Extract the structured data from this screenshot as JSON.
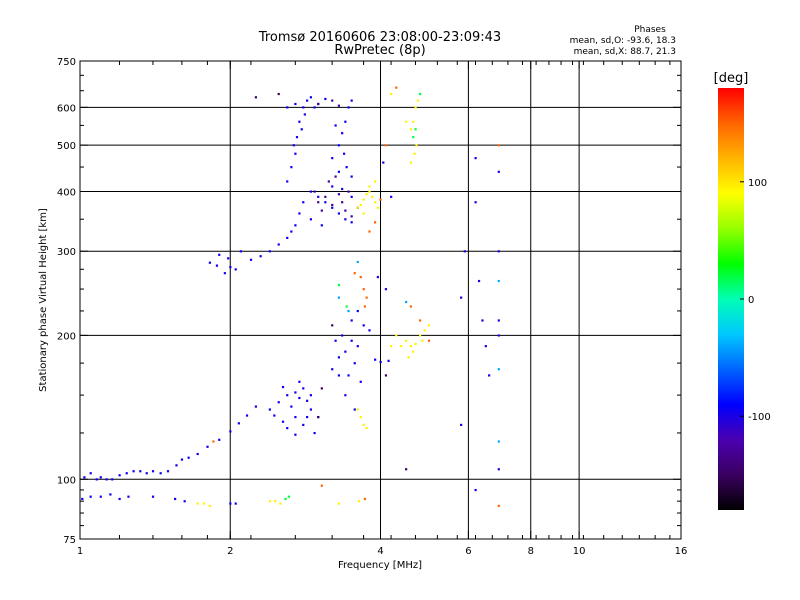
{
  "chart_data": {
    "type": "scatter",
    "title": "Tromsø 20160606 23:08:00-23:09:43",
    "subtitle": "RwPretec (8p)",
    "xlabel": "Frequency [MHz]",
    "ylabel": "Stationary phase Virtual Height [km]",
    "xscale": "log",
    "yscale": "log",
    "xlim": [
      1,
      16
    ],
    "ylim": [
      75,
      750
    ],
    "grid": true,
    "x_ticks": [
      1,
      2,
      4,
      6,
      8,
      10,
      16
    ],
    "x_tick_labels": [
      "1",
      "2",
      "4",
      "6",
      "8",
      "10",
      "16"
    ],
    "x_grid": [
      2,
      4,
      6,
      8,
      10
    ],
    "y_ticks": [
      75,
      100,
      200,
      300,
      400,
      500,
      600,
      750
    ],
    "y_tick_labels": [
      "75",
      "100",
      "200",
      "300",
      "400",
      "500",
      "600",
      "750"
    ],
    "y_grid": [
      100,
      200,
      300,
      400,
      500,
      600
    ],
    "stats": {
      "heading": "Phases",
      "line_o": "mean, sd,O: -93.6, 18.3",
      "line_x": "mean, sd,X: 88.7, 21.3"
    },
    "colorbar": {
      "label": "[deg]",
      "range": [
        -180,
        180
      ],
      "tick_values": [
        100,
        0,
        -100
      ],
      "tick_labels": [
        "100",
        "0",
        "-100"
      ],
      "colors": [
        "#000000",
        "#3a0060",
        "#4b00b0",
        "#0000ff",
        "#0064ff",
        "#00c8ff",
        "#00ffb4",
        "#00ff00",
        "#96ff00",
        "#ffff00",
        "#ffb400",
        "#ff6400",
        "#ff0000"
      ]
    },
    "series": [
      {
        "phase": -95,
        "points": [
          [
            1.02,
            101
          ],
          [
            1.05,
            103
          ],
          [
            1.08,
            100
          ],
          [
            1.1,
            101
          ],
          [
            1.13,
            100
          ],
          [
            1.16,
            100
          ],
          [
            1.2,
            102
          ],
          [
            1.24,
            103
          ],
          [
            1.28,
            104
          ],
          [
            1.32,
            104
          ],
          [
            1.36,
            103
          ],
          [
            1.4,
            104
          ],
          [
            1.45,
            103
          ],
          [
            1.5,
            104
          ],
          [
            1.56,
            107
          ],
          [
            1.6,
            110
          ],
          [
            1.65,
            111
          ],
          [
            1.72,
            113
          ],
          [
            1.8,
            117
          ],
          [
            1.9,
            121
          ],
          [
            2.0,
            126
          ],
          [
            2.08,
            131
          ],
          [
            2.16,
            136
          ],
          [
            2.25,
            142
          ],
          [
            1.01,
            91
          ],
          [
            1.05,
            92
          ],
          [
            1.1,
            92
          ],
          [
            1.15,
            93
          ],
          [
            1.2,
            91
          ],
          [
            1.25,
            92
          ],
          [
            1.4,
            92
          ],
          [
            1.55,
            91
          ],
          [
            1.62,
            90
          ],
          [
            2.0,
            89
          ],
          [
            2.05,
            89
          ],
          [
            2.4,
            140
          ],
          [
            2.5,
            145
          ],
          [
            2.6,
            150
          ],
          [
            2.7,
            152
          ],
          [
            2.75,
            148
          ],
          [
            2.8,
            155
          ],
          [
            2.85,
            146
          ],
          [
            2.9,
            140
          ],
          [
            2.7,
            135
          ],
          [
            2.55,
            132
          ],
          [
            2.6,
            128
          ],
          [
            2.8,
            130
          ],
          [
            2.95,
            125
          ],
          [
            2.45,
            136
          ],
          [
            2.65,
            142
          ],
          [
            2.9,
            150
          ],
          [
            2.75,
            160
          ],
          [
            2.55,
            156
          ],
          [
            2.85,
            135
          ],
          [
            2.7,
            124
          ],
          [
            3.0,
            135
          ],
          [
            3.2,
            170
          ],
          [
            3.3,
            180
          ],
          [
            3.35,
            200
          ],
          [
            3.4,
            185
          ],
          [
            3.5,
            195
          ],
          [
            3.55,
            175
          ],
          [
            3.6,
            190
          ],
          [
            3.65,
            160
          ],
          [
            3.45,
            165
          ],
          [
            3.3,
            165
          ],
          [
            3.7,
            210
          ],
          [
            3.25,
            195
          ],
          [
            3.5,
            215
          ],
          [
            3.6,
            225
          ],
          [
            3.8,
            205
          ],
          [
            3.9,
            178
          ],
          [
            4.0,
            176
          ],
          [
            4.15,
            177
          ],
          [
            3.4,
            150
          ],
          [
            3.55,
            140
          ],
          [
            1.82,
            284
          ],
          [
            1.88,
            280
          ],
          [
            1.95,
            270
          ],
          [
            2.0,
            278
          ],
          [
            2.05,
            275
          ],
          [
            1.9,
            295
          ],
          [
            1.98,
            290
          ],
          [
            2.1,
            300
          ],
          [
            2.2,
            288
          ],
          [
            2.3,
            293
          ],
          [
            2.4,
            300
          ],
          [
            2.5,
            310
          ],
          [
            2.6,
            320
          ],
          [
            2.7,
            340
          ],
          [
            2.75,
            360
          ],
          [
            2.8,
            380
          ],
          [
            2.9,
            400
          ],
          [
            3.0,
            390
          ],
          [
            3.1,
            380
          ],
          [
            3.2,
            370
          ],
          [
            3.3,
            360
          ],
          [
            3.4,
            350
          ],
          [
            3.5,
            345
          ],
          [
            2.65,
            330
          ],
          [
            2.9,
            350
          ],
          [
            3.05,
            340
          ],
          [
            3.2,
            410
          ],
          [
            3.35,
            405
          ],
          [
            3.5,
            390
          ],
          [
            3.6,
            370
          ],
          [
            2.6,
            420
          ],
          [
            2.65,
            450
          ],
          [
            2.7,
            480
          ],
          [
            2.72,
            520
          ],
          [
            2.75,
            560
          ],
          [
            2.8,
            600
          ],
          [
            2.85,
            620
          ],
          [
            2.9,
            630
          ],
          [
            2.82,
            580
          ],
          [
            2.6,
            600
          ],
          [
            2.7,
            610
          ],
          [
            2.95,
            600
          ],
          [
            2.78,
            540
          ],
          [
            2.68,
            500
          ],
          [
            3.2,
            470
          ],
          [
            3.3,
            500
          ],
          [
            3.35,
            530
          ],
          [
            3.4,
            560
          ],
          [
            3.45,
            600
          ],
          [
            3.5,
            620
          ],
          [
            3.25,
            550
          ],
          [
            3.38,
            480
          ],
          [
            3.42,
            450
          ],
          [
            3.3,
            440
          ],
          [
            3.5,
            430
          ],
          [
            3.1,
            625
          ],
          [
            3.0,
            610
          ]
        ]
      },
      {
        "phase": -130,
        "points": [
          [
            3.0,
            380
          ],
          [
            3.1,
            390
          ],
          [
            3.2,
            375
          ],
          [
            3.3,
            395
          ],
          [
            3.4,
            365
          ],
          [
            3.5,
            355
          ],
          [
            3.15,
            420
          ],
          [
            3.25,
            430
          ],
          [
            3.05,
            365
          ],
          [
            3.35,
            380
          ],
          [
            3.45,
            400
          ],
          [
            2.95,
            400
          ],
          [
            3.0,
            610
          ],
          [
            3.2,
            620
          ],
          [
            3.3,
            605
          ]
        ]
      },
      {
        "phase": 95,
        "points": [
          [
            3.6,
            370
          ],
          [
            3.7,
            385
          ],
          [
            3.75,
            395
          ],
          [
            3.8,
            400
          ],
          [
            3.85,
            390
          ],
          [
            3.9,
            380
          ],
          [
            3.95,
            370
          ],
          [
            3.7,
            360
          ],
          [
            3.8,
            410
          ],
          [
            3.9,
            420
          ],
          [
            3.65,
            375
          ],
          [
            4.6,
            540
          ],
          [
            4.65,
            560
          ],
          [
            4.7,
            600
          ],
          [
            4.75,
            620
          ],
          [
            4.72,
            500
          ],
          [
            4.68,
            480
          ],
          [
            4.6,
            460
          ],
          [
            4.2,
            640
          ],
          [
            4.5,
            560
          ],
          [
            4.4,
            190
          ],
          [
            4.5,
            195
          ],
          [
            4.6,
            190
          ],
          [
            4.7,
            192
          ],
          [
            4.8,
            200
          ],
          [
            4.9,
            205
          ],
          [
            5.0,
            210
          ],
          [
            4.3,
            200
          ],
          [
            4.65,
            185
          ],
          [
            4.55,
            180
          ],
          [
            4.2,
            190
          ],
          [
            4.85,
            195
          ],
          [
            3.65,
            135
          ],
          [
            3.7,
            130
          ],
          [
            3.75,
            128
          ],
          [
            3.6,
            140
          ],
          [
            1.72,
            89
          ],
          [
            1.77,
            89
          ],
          [
            1.82,
            88
          ],
          [
            2.4,
            90
          ],
          [
            2.46,
            90
          ],
          [
            2.52,
            89
          ],
          [
            3.3,
            89
          ],
          [
            3.62,
            90
          ]
        ]
      },
      {
        "phase": 150,
        "points": [
          [
            3.8,
            330
          ],
          [
            3.9,
            345
          ],
          [
            4.0,
            385
          ],
          [
            3.55,
            270
          ],
          [
            3.65,
            265
          ],
          [
            3.7,
            250
          ],
          [
            3.75,
            240
          ],
          [
            3.72,
            230
          ],
          [
            4.3,
            660
          ],
          [
            4.1,
            500
          ],
          [
            4.6,
            230
          ],
          [
            4.8,
            215
          ],
          [
            5.0,
            195
          ],
          [
            1.85,
            120
          ],
          [
            3.05,
            97
          ],
          [
            3.72,
            91
          ],
          [
            6.9,
            88
          ],
          [
            6.9,
            500
          ]
        ]
      },
      {
        "phase": 20,
        "points": [
          [
            4.65,
            520
          ],
          [
            4.7,
            540
          ],
          [
            4.8,
            640
          ],
          [
            2.58,
            91
          ],
          [
            2.62,
            92
          ],
          [
            3.42,
            230
          ],
          [
            3.3,
            255
          ]
        ]
      },
      {
        "phase": -40,
        "points": [
          [
            3.3,
            240
          ],
          [
            3.45,
            225
          ],
          [
            3.6,
            285
          ],
          [
            6.9,
            260
          ],
          [
            6.9,
            170
          ],
          [
            6.9,
            120
          ],
          [
            4.5,
            235
          ]
        ]
      },
      {
        "phase": -100,
        "points": [
          [
            6.2,
            470
          ],
          [
            6.2,
            380
          ],
          [
            6.3,
            260
          ],
          [
            6.4,
            215
          ],
          [
            6.2,
            95
          ],
          [
            6.9,
            440
          ],
          [
            6.9,
            300
          ],
          [
            6.9,
            215
          ],
          [
            6.9,
            200
          ],
          [
            5.9,
            300
          ],
          [
            5.8,
            240
          ],
          [
            6.5,
            190
          ],
          [
            5.8,
            130
          ],
          [
            6.6,
            165
          ],
          [
            6.9,
            105
          ],
          [
            4.05,
            460
          ],
          [
            4.2,
            390
          ],
          [
            3.95,
            265
          ],
          [
            4.1,
            250
          ]
        ]
      },
      {
        "phase": -150,
        "points": [
          [
            2.25,
            630
          ],
          [
            2.5,
            640
          ],
          [
            3.2,
            210
          ],
          [
            3.0,
            135
          ],
          [
            4.5,
            105
          ],
          [
            4.1,
            165
          ],
          [
            3.05,
            155
          ]
        ]
      }
    ]
  }
}
